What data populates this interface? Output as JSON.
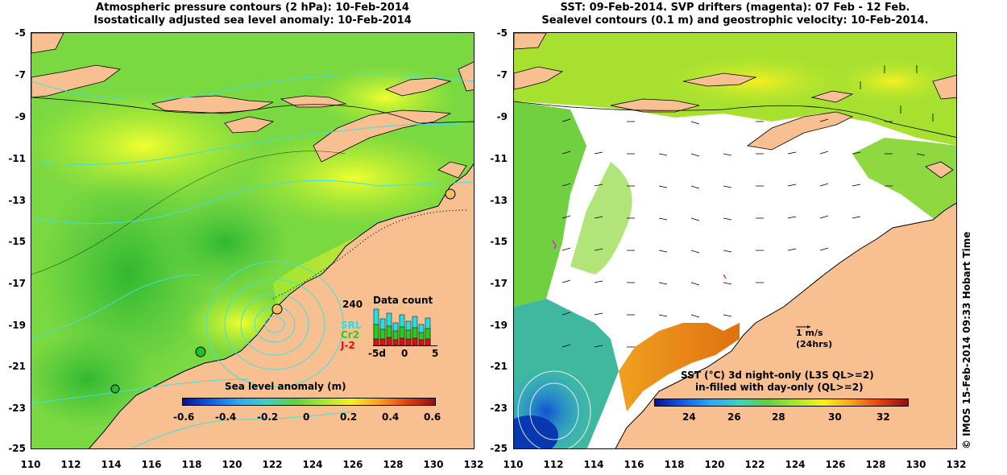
{
  "left_panel": {
    "title_line1": "Atmospheric pressure contours (2 hPa): 10-Feb-2014",
    "title_line2": "Isostatically adjusted sea level anomaly: 10-Feb-2014",
    "colorbar_label": "Sea level anomaly (m)",
    "colorbar_ticks": [
      "-0.6",
      "-0.4",
      "-0.2",
      "0",
      "0.2",
      "0.4",
      "0.6"
    ],
    "inset": {
      "title": "Data count",
      "max_label": "240",
      "series": [
        {
          "name": "SRL",
          "color": "#20e0e8"
        },
        {
          "name": "Cr2",
          "color": "#20d020"
        },
        {
          "name": "J-2",
          "color": "#e01010"
        }
      ],
      "x_ticks": [
        "-5d",
        "0",
        "5"
      ]
    }
  },
  "right_panel": {
    "title_line1": "SST: 09-Feb-2014. SVP drifters (magenta): 07 Feb - 12 Feb.",
    "title_line2": "Sealevel contours (0.1 m) and geostrophic velocity: 10-Feb-2014.",
    "scale_label_line1": "1 m/s",
    "scale_label_line2": "(24hrs)",
    "legend_line1": "SST (°C)  3d night-only (L3S QL>=2)",
    "legend_line2": "in-filled with day-only (QL>=2)",
    "colorbar_ticks": [
      "24",
      "26",
      "28",
      "30",
      "32"
    ]
  },
  "y_ticks": [
    "-5",
    "-7",
    "-9",
    "-11",
    "-13",
    "-15",
    "-17",
    "-19",
    "-21",
    "-23",
    "-25"
  ],
  "x_ticks": [
    "110",
    "112",
    "114",
    "116",
    "118",
    "120",
    "122",
    "124",
    "126",
    "128",
    "130",
    "132"
  ],
  "side_credit": "© IMOS 15-Feb-2014 09:33 Hobart Time",
  "colors": {
    "land": "#f8c090",
    "ocean_green": "#60d040",
    "contour": "#40e0e0"
  }
}
